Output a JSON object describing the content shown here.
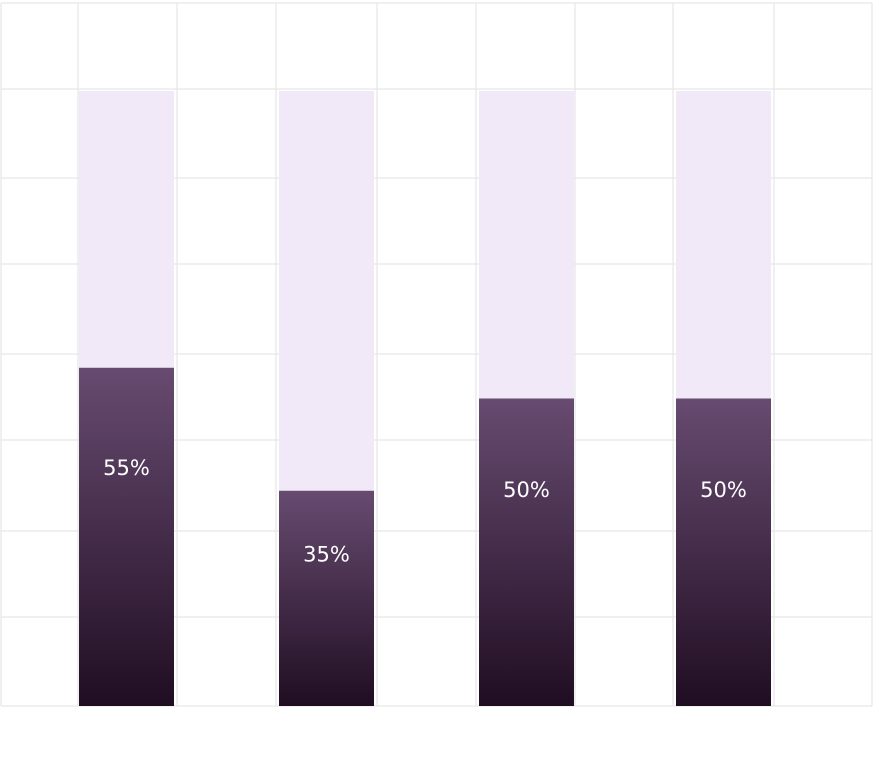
{
  "chart_data": {
    "type": "bar",
    "stacked": true,
    "categories": [
      "",
      "",
      "",
      ""
    ],
    "values": [
      55,
      35,
      50,
      50
    ],
    "labels": [
      "55%",
      "35%",
      "50%",
      "50%"
    ],
    "ylim": [
      0,
      100
    ],
    "grid": true,
    "title": "",
    "xlabel": "",
    "ylabel": "",
    "colors": {
      "filled_top": "#674b70",
      "filled_bottom": "#200d22",
      "remainder": "#f1e9f7",
      "grid": "#e6e6e6"
    }
  }
}
